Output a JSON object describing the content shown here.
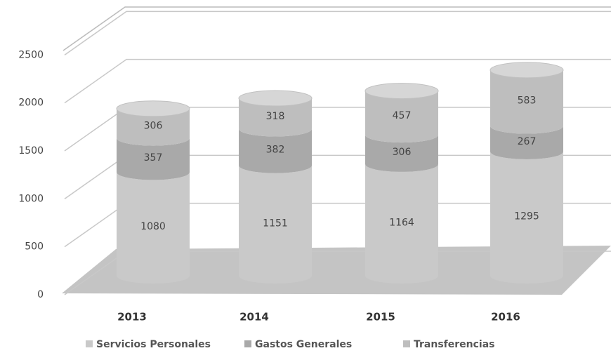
{
  "chart_data": {
    "type": "stacked-cylinder",
    "categories": [
      "2013",
      "2014",
      "2015",
      "2016"
    ],
    "series": [
      {
        "name": "Servicios Personales",
        "color": "#c9c9c9",
        "values": [
          1080,
          1151,
          1164,
          1295
        ]
      },
      {
        "name": "Gastos Generales",
        "color": "#a9a9a9",
        "values": [
          357,
          382,
          306,
          267
        ]
      },
      {
        "name": "Transferencias",
        "color": "#bebebe",
        "values": [
          306,
          318,
          457,
          583
        ]
      }
    ],
    "ylim": [
      0,
      3000
    ],
    "yticks": [
      0,
      500,
      1000,
      1500,
      2000,
      2500
    ],
    "grid": true,
    "legend": "bottom"
  }
}
